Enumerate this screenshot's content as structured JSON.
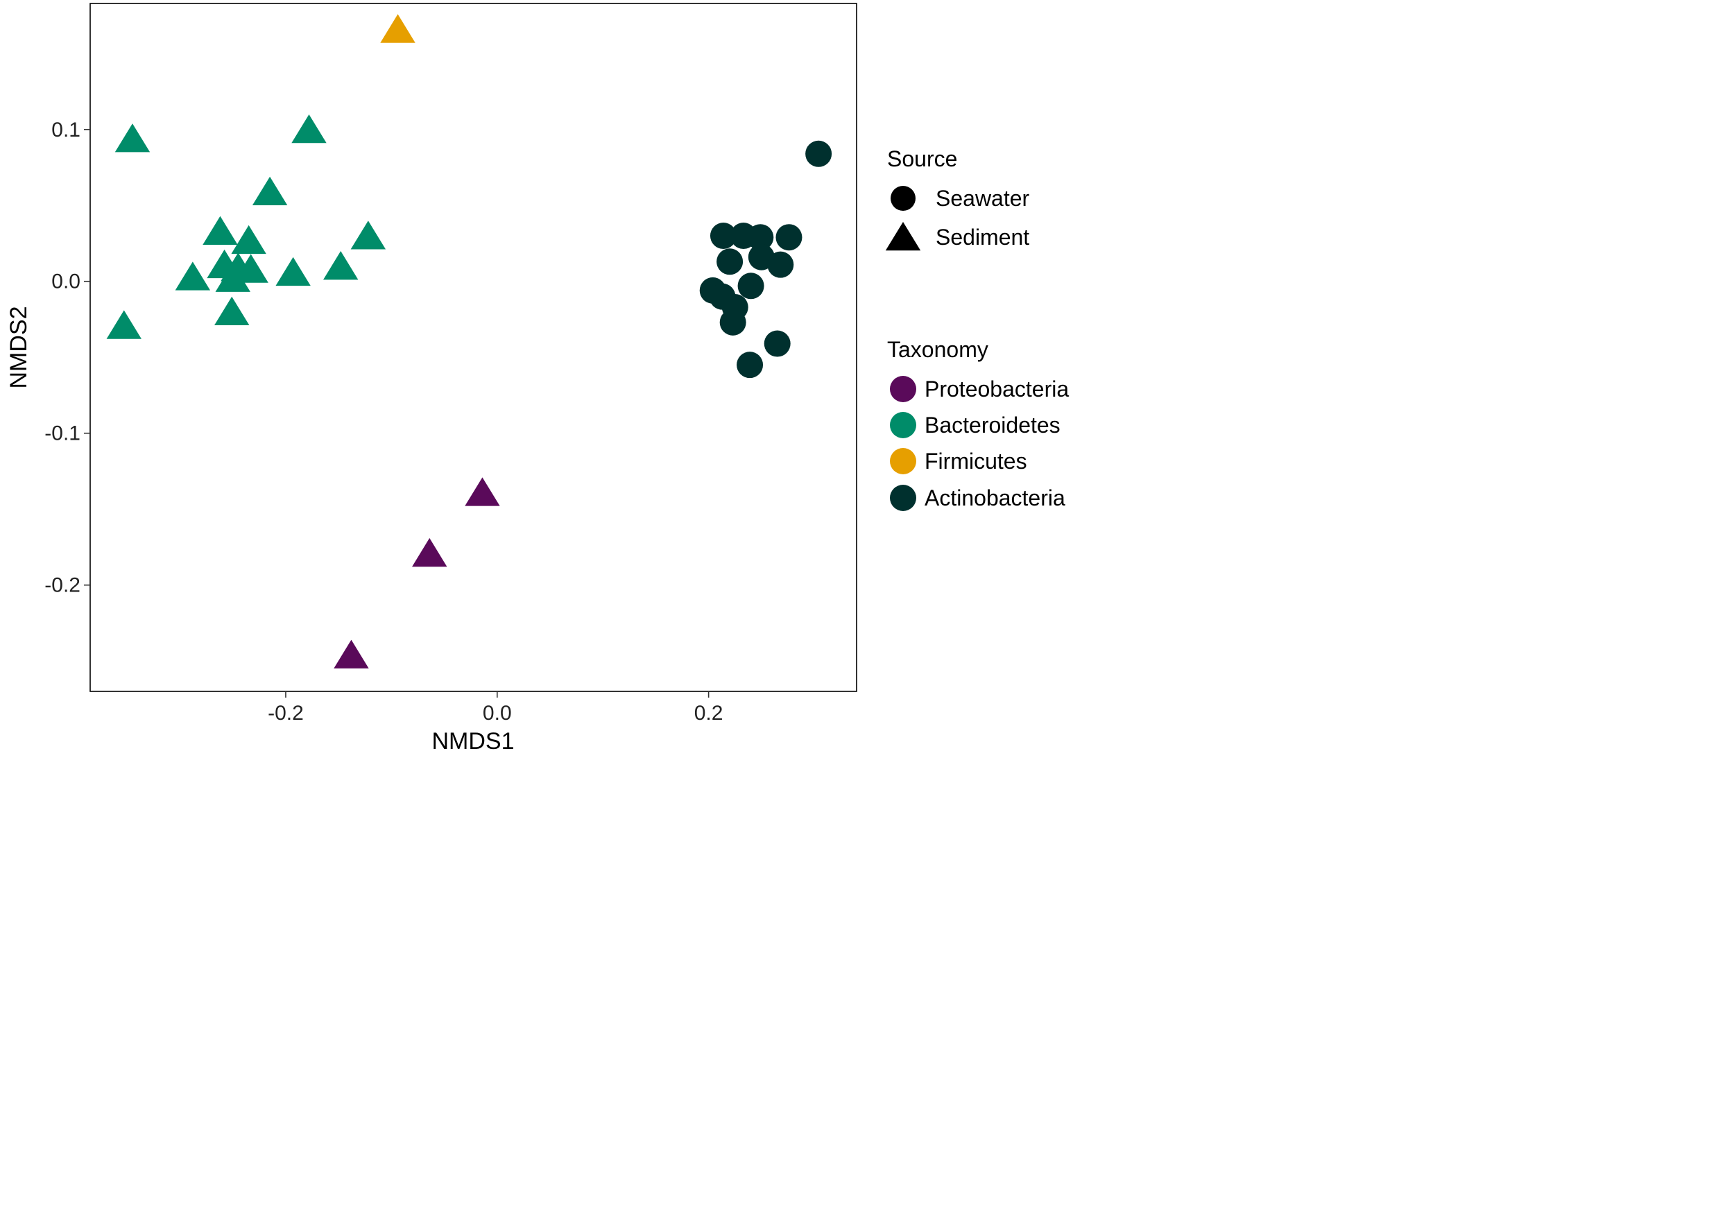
{
  "chart_data": {
    "type": "scatter",
    "xlabel": "NMDS1",
    "ylabel": "NMDS2",
    "xlim": [
      -0.385,
      0.34
    ],
    "ylim": [
      -0.27,
      0.183
    ],
    "x_ticks": [
      {
        "value": -0.2,
        "label": "-0.2"
      },
      {
        "value": 0.0,
        "label": "0.0"
      },
      {
        "value": 0.2,
        "label": "0.2"
      }
    ],
    "y_ticks": [
      {
        "value": 0.1,
        "label": "0.1"
      },
      {
        "value": 0.0,
        "label": "0.0"
      },
      {
        "value": -0.1,
        "label": "-0.1"
      },
      {
        "value": -0.2,
        "label": "-0.2"
      }
    ],
    "grid": false,
    "legend_placement": "right",
    "legends": [
      {
        "title": "Source",
        "items": [
          {
            "label": "Seawater",
            "shape": "circle"
          },
          {
            "label": "Sediment",
            "shape": "triangle"
          }
        ]
      },
      {
        "title": "Taxonomy",
        "items": [
          {
            "label": "Proteobacteria",
            "color": "#5a0a5a"
          },
          {
            "label": "Bacteroidetes",
            "color": "#008c69"
          },
          {
            "label": "Firmicutes",
            "color": "#e69f00"
          },
          {
            "label": "Actinobacteria",
            "color": "#00302e"
          }
        ]
      }
    ],
    "series": [
      {
        "name": "Proteobacteria",
        "source": "Sediment",
        "color": "#5a0a5a",
        "shape": "triangle",
        "points": [
          [
            -0.014,
            -0.14
          ],
          [
            -0.064,
            -0.18
          ],
          [
            -0.138,
            -0.247
          ]
        ]
      },
      {
        "name": "Bacteroidetes",
        "source": "Sediment",
        "color": "#008c69",
        "shape": "triangle",
        "points": [
          [
            -0.345,
            0.093
          ],
          [
            -0.178,
            0.099
          ],
          [
            -0.215,
            0.058
          ],
          [
            -0.262,
            0.032
          ],
          [
            -0.235,
            0.026
          ],
          [
            -0.122,
            0.029
          ],
          [
            -0.258,
            0.01
          ],
          [
            -0.245,
            0.008
          ],
          [
            -0.233,
            0.007
          ],
          [
            -0.193,
            0.005
          ],
          [
            -0.288,
            0.002
          ],
          [
            -0.25,
            0.001
          ],
          [
            -0.148,
            0.009
          ],
          [
            -0.251,
            -0.021
          ],
          [
            -0.353,
            -0.03
          ]
        ]
      },
      {
        "name": "Firmicutes",
        "source": "Sediment",
        "color": "#e69f00",
        "shape": "triangle",
        "points": [
          [
            -0.094,
            0.165
          ]
        ]
      },
      {
        "name": "Actinobacteria",
        "source": "Seawater",
        "color": "#00302e",
        "shape": "circle",
        "points": [
          [
            0.304,
            0.084
          ],
          [
            0.214,
            0.03
          ],
          [
            0.233,
            0.03
          ],
          [
            0.249,
            0.029
          ],
          [
            0.276,
            0.029
          ],
          [
            0.25,
            0.016
          ],
          [
            0.22,
            0.013
          ],
          [
            0.268,
            0.011
          ],
          [
            0.204,
            -0.006
          ],
          [
            0.24,
            -0.003
          ],
          [
            0.213,
            -0.01
          ],
          [
            0.225,
            -0.017
          ],
          [
            0.223,
            -0.027
          ],
          [
            0.265,
            -0.041
          ],
          [
            0.239,
            -0.055
          ]
        ]
      }
    ]
  }
}
